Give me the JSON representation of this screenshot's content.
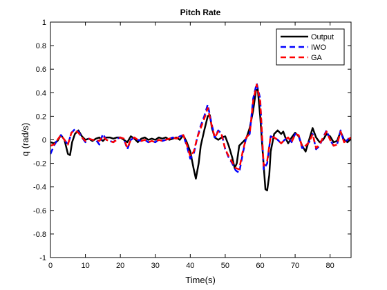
{
  "chart_data": {
    "type": "line",
    "title": "Pitch Rate",
    "xlabel": "Time(s)",
    "ylabel": "q (rad/s)",
    "xlim": [
      0,
      86
    ],
    "ylim": [
      -1,
      1
    ],
    "xticks": [
      0,
      10,
      20,
      30,
      40,
      50,
      60,
      70,
      80
    ],
    "yticks": [
      -1,
      -0.8,
      -0.6,
      -0.4,
      -0.2,
      0,
      0.2,
      0.4,
      0.6,
      0.8,
      1
    ],
    "xtick_labels": [
      "0",
      "10",
      "20",
      "30",
      "40",
      "50",
      "60",
      "70",
      "80"
    ],
    "ytick_labels": [
      "-1",
      "-0.8",
      "-0.6",
      "-0.4",
      "-0.2",
      "0",
      "0.2",
      "0.4",
      "0.6",
      "0.8",
      "1"
    ],
    "grid": false,
    "legend_position": "top-right",
    "series": [
      {
        "name": "Output",
        "color": "#000000",
        "style": "solid",
        "points": [
          [
            0,
            -0.02
          ],
          [
            1,
            -0.03
          ],
          [
            2,
            -0.01
          ],
          [
            3,
            0.04
          ],
          [
            4,
            0.0
          ],
          [
            5,
            -0.12
          ],
          [
            5.6,
            -0.13
          ],
          [
            6.2,
            -0.02
          ],
          [
            7,
            0.05
          ],
          [
            8,
            0.08
          ],
          [
            9,
            0.03
          ],
          [
            10,
            0.0
          ],
          [
            11,
            0.01
          ],
          [
            12,
            -0.01
          ],
          [
            13,
            0.01
          ],
          [
            14,
            0.02
          ],
          [
            15,
            -0.01
          ],
          [
            16,
            0.02
          ],
          [
            17,
            0.02
          ],
          [
            18,
            0.01
          ],
          [
            19,
            0.02
          ],
          [
            20,
            0.02
          ],
          [
            21,
            0.0
          ],
          [
            22,
            -0.02
          ],
          [
            23,
            0.03
          ],
          [
            24,
            0.01
          ],
          [
            25,
            -0.02
          ],
          [
            26,
            0.01
          ],
          [
            27,
            0.02
          ],
          [
            28,
            0.0
          ],
          [
            29,
            0.01
          ],
          [
            30,
            0.0
          ],
          [
            31,
            0.02
          ],
          [
            32,
            0.01
          ],
          [
            33,
            0.02
          ],
          [
            34,
            0.0
          ],
          [
            35,
            0.01
          ],
          [
            36,
            0.02
          ],
          [
            37,
            0.0
          ],
          [
            38,
            0.04
          ],
          [
            39,
            -0.02
          ],
          [
            40,
            -0.1
          ],
          [
            41,
            -0.25
          ],
          [
            41.6,
            -0.33
          ],
          [
            42.4,
            -0.2
          ],
          [
            43,
            -0.05
          ],
          [
            44,
            0.08
          ],
          [
            45,
            0.2
          ],
          [
            45.6,
            0.21
          ],
          [
            46.2,
            0.1
          ],
          [
            47,
            0.02
          ],
          [
            48,
            0.0
          ],
          [
            49,
            0.02
          ],
          [
            50,
            0.03
          ],
          [
            51,
            -0.05
          ],
          [
            52,
            -0.15
          ],
          [
            52.7,
            -0.24
          ],
          [
            53.3,
            -0.2
          ],
          [
            54,
            -0.05
          ],
          [
            55,
            -0.02
          ],
          [
            56,
            0.01
          ],
          [
            57,
            0.1
          ],
          [
            58,
            0.25
          ],
          [
            58.8,
            0.42
          ],
          [
            59.3,
            0.43
          ],
          [
            60,
            0.2
          ],
          [
            61,
            -0.22
          ],
          [
            61.5,
            -0.42
          ],
          [
            62,
            -0.43
          ],
          [
            62.6,
            -0.3
          ],
          [
            63,
            -0.1
          ],
          [
            64,
            0.05
          ],
          [
            65,
            0.08
          ],
          [
            66,
            0.05
          ],
          [
            66.6,
            0.07
          ],
          [
            67.2,
            0.02
          ],
          [
            68,
            -0.03
          ],
          [
            69,
            0.02
          ],
          [
            70,
            0.06
          ],
          [
            71,
            0.03
          ],
          [
            72,
            -0.05
          ],
          [
            73,
            -0.1
          ],
          [
            74,
            0.0
          ],
          [
            75,
            0.1
          ],
          [
            76,
            0.02
          ],
          [
            77,
            -0.02
          ],
          [
            78,
            0.0
          ],
          [
            79,
            0.05
          ],
          [
            80,
            0.03
          ],
          [
            81,
            -0.02
          ],
          [
            82,
            -0.01
          ],
          [
            83,
            0.07
          ],
          [
            84,
            0.0
          ],
          [
            85,
            -0.02
          ],
          [
            86,
            0.01
          ]
        ]
      },
      {
        "name": "IWO",
        "color": "#0000ff",
        "style": "dashed",
        "points": [
          [
            0,
            -0.12
          ],
          [
            1,
            -0.05
          ],
          [
            2,
            0.0
          ],
          [
            3,
            0.04
          ],
          [
            4,
            0.0
          ],
          [
            5,
            -0.04
          ],
          [
            6,
            0.06
          ],
          [
            7,
            0.09
          ],
          [
            8,
            0.07
          ],
          [
            9,
            0.02
          ],
          [
            10,
            -0.02
          ],
          [
            11,
            0.01
          ],
          [
            12,
            0.0
          ],
          [
            13,
            0.0
          ],
          [
            14,
            -0.04
          ],
          [
            15,
            0.05
          ],
          [
            16,
            0.0
          ],
          [
            17,
            -0.01
          ],
          [
            18,
            -0.02
          ],
          [
            19,
            0.01
          ],
          [
            20,
            0.02
          ],
          [
            21,
            0.01
          ],
          [
            22,
            -0.08
          ],
          [
            23,
            0.0
          ],
          [
            24,
            0.02
          ],
          [
            25,
            0.0
          ],
          [
            26,
            -0.01
          ],
          [
            27,
            0.0
          ],
          [
            28,
            -0.02
          ],
          [
            29,
            -0.01
          ],
          [
            30,
            -0.02
          ],
          [
            31,
            0.0
          ],
          [
            32,
            -0.01
          ],
          [
            33,
            0.0
          ],
          [
            34,
            0.01
          ],
          [
            35,
            0.02
          ],
          [
            36,
            0.01
          ],
          [
            37,
            0.03
          ],
          [
            38,
            0.04
          ],
          [
            39,
            -0.05
          ],
          [
            40,
            -0.16
          ],
          [
            41,
            -0.12
          ],
          [
            42,
            0.02
          ],
          [
            43,
            0.12
          ],
          [
            44,
            0.2
          ],
          [
            45,
            0.3
          ],
          [
            46,
            0.15
          ],
          [
            47,
            0.02
          ],
          [
            48,
            0.08
          ],
          [
            49,
            0.05
          ],
          [
            50,
            -0.08
          ],
          [
            51,
            -0.15
          ],
          [
            52,
            -0.2
          ],
          [
            53,
            -0.26
          ],
          [
            54,
            -0.28
          ],
          [
            55,
            -0.12
          ],
          [
            56,
            0.02
          ],
          [
            57,
            0.05
          ],
          [
            58,
            0.35
          ],
          [
            59,
            0.48
          ],
          [
            60,
            0.35
          ],
          [
            61,
            -0.25
          ],
          [
            62,
            -0.2
          ],
          [
            63,
            0.03
          ],
          [
            64,
            0.02
          ],
          [
            65,
            0.0
          ],
          [
            66,
            -0.03
          ],
          [
            67,
            0.0
          ],
          [
            68,
            0.02
          ],
          [
            69,
            -0.02
          ],
          [
            70,
            0.05
          ],
          [
            71,
            0.04
          ],
          [
            72,
            -0.07
          ],
          [
            73,
            -0.05
          ],
          [
            74,
            -0.02
          ],
          [
            75,
            0.05
          ],
          [
            76,
            -0.08
          ],
          [
            77,
            -0.05
          ],
          [
            78,
            0.02
          ],
          [
            79,
            0.08
          ],
          [
            80,
            0.0
          ],
          [
            81,
            -0.05
          ],
          [
            82,
            -0.04
          ],
          [
            83,
            0.08
          ],
          [
            84,
            -0.02
          ],
          [
            85,
            0.0
          ],
          [
            86,
            0.04
          ]
        ]
      },
      {
        "name": "GA",
        "color": "#ff0000",
        "style": "dashed",
        "points": [
          [
            0,
            -0.05
          ],
          [
            1,
            -0.04
          ],
          [
            2,
            0.0
          ],
          [
            3,
            0.04
          ],
          [
            4,
            0.0
          ],
          [
            5,
            -0.04
          ],
          [
            6,
            0.06
          ],
          [
            7,
            0.08
          ],
          [
            8,
            0.06
          ],
          [
            9,
            0.02
          ],
          [
            10,
            -0.01
          ],
          [
            11,
            0.01
          ],
          [
            12,
            0.0
          ],
          [
            13,
            0.0
          ],
          [
            14,
            -0.01
          ],
          [
            15,
            0.03
          ],
          [
            16,
            0.0
          ],
          [
            17,
            -0.01
          ],
          [
            18,
            -0.02
          ],
          [
            19,
            0.0
          ],
          [
            20,
            0.02
          ],
          [
            21,
            0.01
          ],
          [
            22,
            -0.07
          ],
          [
            23,
            0.0
          ],
          [
            24,
            0.02
          ],
          [
            25,
            0.0
          ],
          [
            26,
            -0.01
          ],
          [
            27,
            0.0
          ],
          [
            28,
            -0.02
          ],
          [
            29,
            -0.01
          ],
          [
            30,
            -0.02
          ],
          [
            31,
            0.0
          ],
          [
            32,
            -0.01
          ],
          [
            33,
            0.0
          ],
          [
            34,
            0.01
          ],
          [
            35,
            0.02
          ],
          [
            36,
            0.01
          ],
          [
            37,
            0.03
          ],
          [
            38,
            0.04
          ],
          [
            39,
            -0.04
          ],
          [
            40,
            -0.14
          ],
          [
            41,
            -0.1
          ],
          [
            42,
            0.02
          ],
          [
            43,
            0.1
          ],
          [
            44,
            0.18
          ],
          [
            45,
            0.27
          ],
          [
            46,
            0.14
          ],
          [
            47,
            0.02
          ],
          [
            48,
            0.07
          ],
          [
            49,
            0.04
          ],
          [
            50,
            -0.08
          ],
          [
            51,
            -0.14
          ],
          [
            52,
            -0.19
          ],
          [
            53,
            -0.24
          ],
          [
            54,
            -0.25
          ],
          [
            55,
            -0.1
          ],
          [
            56,
            0.02
          ],
          [
            57,
            0.05
          ],
          [
            58,
            0.33
          ],
          [
            59,
            0.47
          ],
          [
            60,
            0.33
          ],
          [
            61,
            -0.22
          ],
          [
            62,
            -0.18
          ],
          [
            63,
            0.03
          ],
          [
            64,
            0.02
          ],
          [
            65,
            0.0
          ],
          [
            66,
            -0.03
          ],
          [
            67,
            0.0
          ],
          [
            68,
            0.02
          ],
          [
            69,
            -0.02
          ],
          [
            70,
            0.05
          ],
          [
            71,
            0.04
          ],
          [
            72,
            -0.06
          ],
          [
            73,
            -0.05
          ],
          [
            74,
            -0.02
          ],
          [
            75,
            0.05
          ],
          [
            76,
            -0.07
          ],
          [
            77,
            -0.04
          ],
          [
            78,
            0.02
          ],
          [
            79,
            0.07
          ],
          [
            80,
            0.0
          ],
          [
            81,
            -0.05
          ],
          [
            82,
            -0.04
          ],
          [
            83,
            0.07
          ],
          [
            84,
            -0.02
          ],
          [
            85,
            0.0
          ],
          [
            86,
            0.02
          ]
        ]
      }
    ]
  }
}
